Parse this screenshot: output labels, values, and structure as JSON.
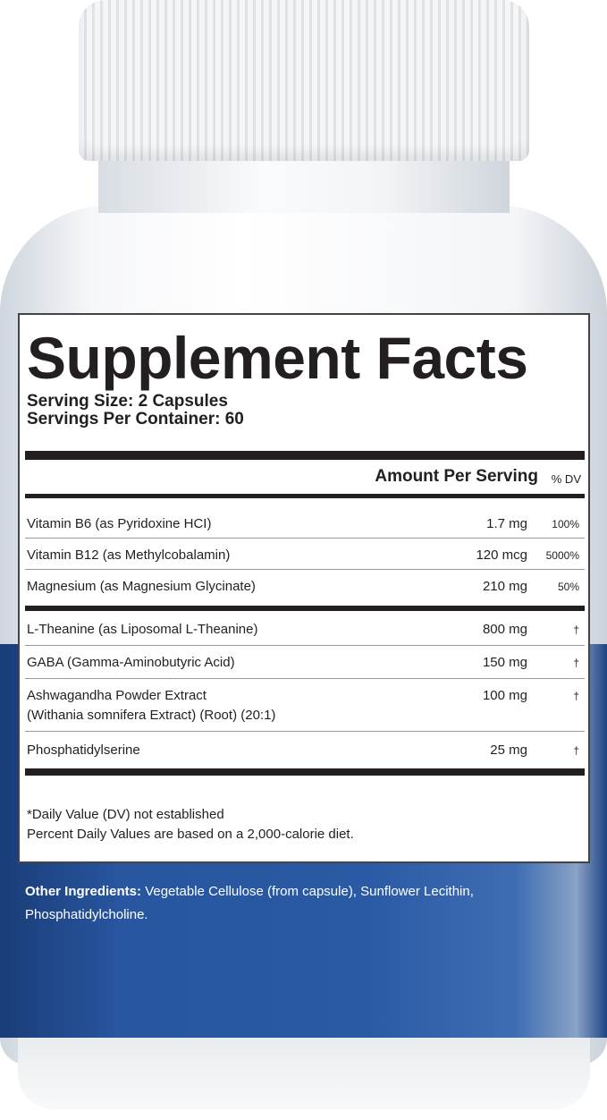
{
  "label": {
    "title": "Supplement Facts",
    "serving_size": "Serving Size: 2 Capsules",
    "servings_per_container": "Servings Per Container: 60",
    "amount_header": "Amount Per Serving",
    "dv_header": "% DV",
    "group1": [
      {
        "name": "Vitamin B6 (as Pyridoxine HCI)",
        "amount": "1.7 mg",
        "dv": "100%"
      },
      {
        "name": "Vitamin B12 (as Methylcobalamin)",
        "amount": "120 mcg",
        "dv": "5000%"
      },
      {
        "name": "Magnesium (as Magnesium Glycinate)",
        "amount": "210 mg",
        "dv": "50%"
      }
    ],
    "group2": [
      {
        "name": "L-Theanine (as Liposomal L-Theanine)",
        "amount": "800 mg",
        "dv": "†"
      },
      {
        "name": "GABA (Gamma-Aminobutyric Acid)",
        "amount": "150 mg",
        "dv": "†"
      },
      {
        "name": "Ashwagandha Powder Extract",
        "name2": "(Withania somnifera Extract) (Root) (20:1)",
        "amount": "100 mg",
        "dv": "†"
      },
      {
        "name": "Phosphatidylserine",
        "amount": "25 mg",
        "dv": "†"
      }
    ],
    "footnote1": "*Daily Value (DV) not established",
    "footnote2": "Percent Daily Values are based on a 2,000-calorie diet."
  },
  "other_ingredients": {
    "label": "Other Ingredients:",
    "text": "Vegetable Cellulose (from capsule), Sunflower Lecithin, Phosphatidylcholine."
  },
  "colors": {
    "bottle_blue": "#2a5aa5",
    "text": "#231f20"
  }
}
